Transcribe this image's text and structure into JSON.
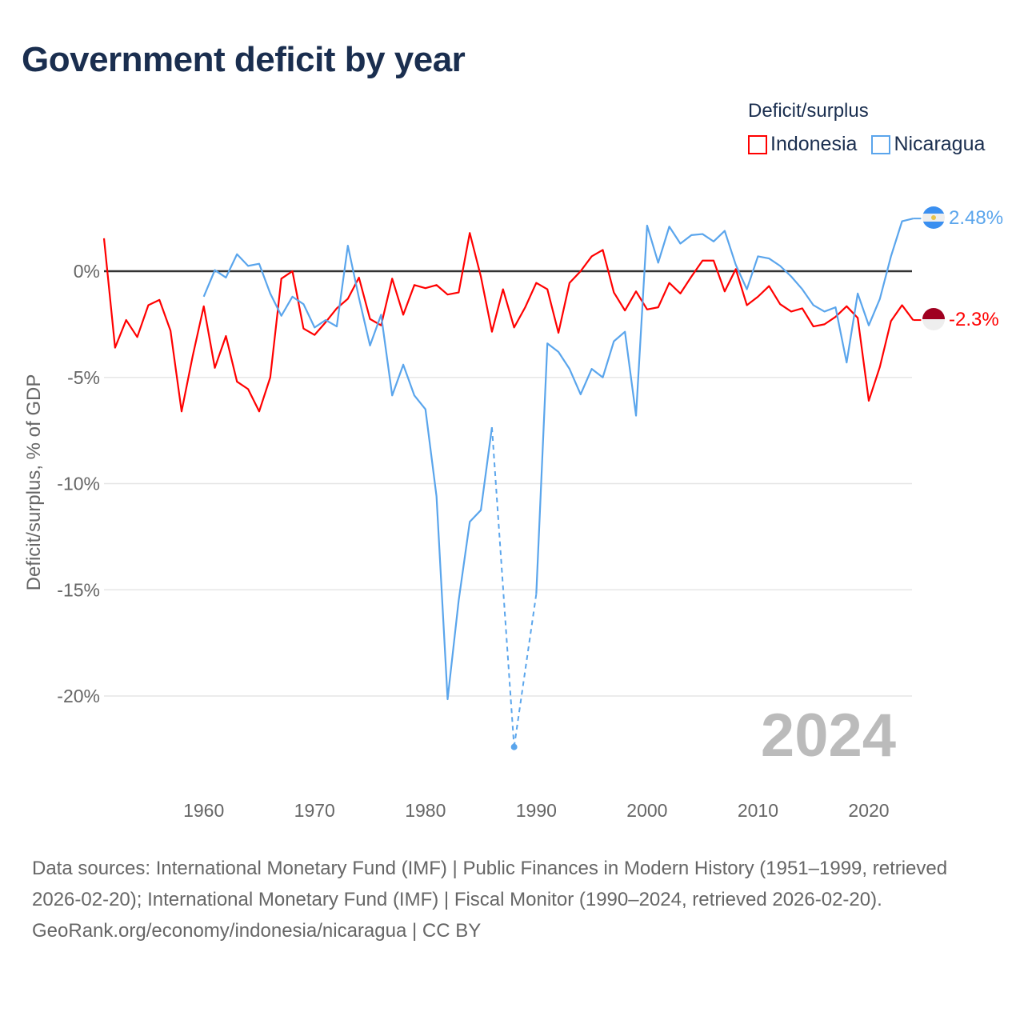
{
  "title": "Government deficit by year",
  "legend": {
    "title": "Deficit/surplus",
    "items": [
      {
        "label": "Indonesia",
        "color": "#ff0000"
      },
      {
        "label": "Nicaragua",
        "color": "#5aa5ec"
      }
    ]
  },
  "year_watermark": "2024",
  "end_labels": {
    "indonesia": "-2.3%",
    "nicaragua": "2.48%"
  },
  "footer": {
    "sources": "Data sources: International Monetary Fund (IMF) | Public Finances in Modern History (1951–1999, retrieved 2026-02-20); International Monetary Fund (IMF) | Fiscal Monitor (1990–2024, retrieved 2026-02-20).",
    "credit": "GeoRank.org/economy/indonesia/nicaragua | CC BY"
  },
  "chart_data": {
    "type": "line",
    "title": "Government deficit by year",
    "xlabel": "",
    "ylabel": "Deficit/surplus, % of GDP",
    "xlim": [
      1951,
      2024
    ],
    "ylim": [
      -23,
      3
    ],
    "xticks": [
      1960,
      1970,
      1980,
      1990,
      2000,
      2010,
      2020
    ],
    "yticks": [
      0,
      -5,
      -10,
      -15,
      -20
    ],
    "ytick_labels": [
      "0%",
      "-5%",
      "-10%",
      "-15%",
      "-20%"
    ],
    "grid": true,
    "legend_position": "top-right",
    "series": [
      {
        "name": "Indonesia",
        "color": "#ff0000",
        "start_year": 1951,
        "values": [
          1.55,
          -3.6,
          -2.3,
          -3.1,
          -1.6,
          -1.35,
          -2.8,
          -6.6,
          -4.0,
          -1.65,
          -4.55,
          -3.05,
          -5.2,
          -5.55,
          -6.6,
          -5.0,
          -0.35,
          0,
          -2.7,
          -3.0,
          -2.4,
          -1.75,
          -1.3,
          -0.3,
          -2.25,
          -2.55,
          -0.35,
          -2.05,
          -0.65,
          -0.8,
          -0.65,
          -1.1,
          -1.0,
          1.8,
          -0.25,
          -2.85,
          -0.85,
          -2.65,
          -1.7,
          -0.55,
          -0.85,
          -2.9,
          -0.55,
          0,
          0.7,
          1.0,
          -1.0,
          -1.85,
          -0.95,
          -1.8,
          -1.7,
          -0.55,
          -1.05,
          -0.25,
          0.5,
          0.5,
          -0.95,
          0.1,
          -1.6,
          -1.2,
          -0.7,
          -1.55,
          -1.9,
          -1.75,
          -2.6,
          -2.5,
          -2.15,
          -1.65,
          -2.2,
          -6.1,
          -4.5,
          -2.35,
          -1.6,
          -2.3
        ]
      },
      {
        "name": "Nicaragua",
        "color": "#5aa5ec",
        "start_year": 1960,
        "values": [
          -1.2,
          0.05,
          -0.3,
          0.8,
          0.25,
          0.35,
          -1.05,
          -2.1,
          -1.2,
          -1.55,
          -2.65,
          -2.3,
          -2.6,
          1.2,
          -1.25,
          -3.5,
          -2.05,
          -5.85,
          -4.4,
          -5.85,
          -6.5,
          -10.6,
          -20.15,
          -15.5,
          -11.8,
          -11.25,
          -7.35,
          null,
          -22.4,
          null,
          -15.2,
          -3.4,
          -3.8,
          -4.6,
          -5.8,
          -4.6,
          -5.0,
          -3.3,
          -2.85,
          -6.8,
          2.15,
          0.4,
          2.1,
          1.3,
          1.7,
          1.75,
          1.4,
          1.9,
          0.3,
          -0.85,
          0.7,
          0.6,
          0.25,
          -0.25,
          -0.85,
          -1.6,
          -1.9,
          -1.7,
          -4.3,
          -1.05,
          -2.55,
          -1.3,
          0.7,
          2.35,
          2.48
        ]
      }
    ]
  }
}
